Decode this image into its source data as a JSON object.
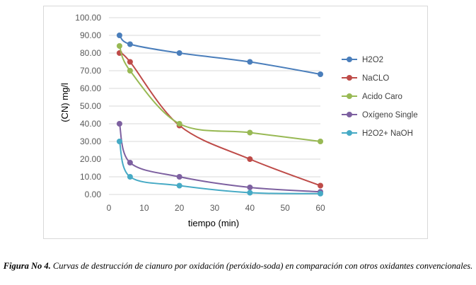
{
  "chart_data": {
    "type": "line",
    "title": "",
    "xlabel": "tiempo (min)",
    "ylabel": "(CN) mg/l",
    "xlim": [
      0,
      60
    ],
    "ylim": [
      0,
      100
    ],
    "xticks": [
      "0",
      "10",
      "20",
      "30",
      "40",
      "50",
      "60"
    ],
    "yticks": [
      "0.00",
      "10.00",
      "20.00",
      "30.00",
      "40.00",
      "50.00",
      "60.00",
      "70.00",
      "80.00",
      "90.00",
      "100.00"
    ],
    "grid": "horizontal",
    "legend_position": "right",
    "series": [
      {
        "name": "H2O2",
        "color": "#4a7ebb",
        "x": [
          3,
          6,
          20,
          40,
          60
        ],
        "y": [
          90,
          85,
          80,
          75,
          68
        ]
      },
      {
        "name": "NaCLO",
        "color": "#be4b48",
        "x": [
          3,
          6,
          20,
          40,
          60
        ],
        "y": [
          80,
          75,
          39,
          20,
          5
        ]
      },
      {
        "name": "Acido Caro",
        "color": "#98b954",
        "x": [
          3,
          6,
          20,
          40,
          60
        ],
        "y": [
          84,
          70,
          40,
          35,
          30
        ]
      },
      {
        "name": "Oxígeno Single",
        "color": "#7d60a0",
        "x": [
          3,
          6,
          20,
          40,
          60
        ],
        "y": [
          40,
          18,
          10,
          4,
          1.5
        ]
      },
      {
        "name": "H2O2+ NaOH",
        "color": "#46aac5",
        "x": [
          3,
          6,
          20,
          40,
          60
        ],
        "y": [
          30,
          10,
          5,
          1,
          0.5
        ]
      }
    ]
  },
  "caption": {
    "label": "Figura No 4.",
    "text": " Curvas de destrucción de cianuro por oxidación (peróxido-soda) en comparación con otros oxidantes convencionales."
  }
}
